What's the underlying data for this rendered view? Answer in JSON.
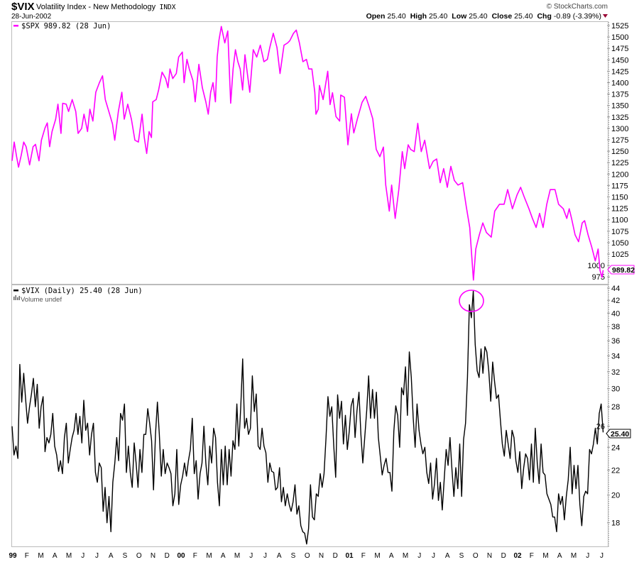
{
  "header": {
    "symbol": "$VIX",
    "name": "Volatility Index - New Methodology",
    "exchange": "INDX",
    "date": "28-Jun-2002",
    "copyright": "© StockCharts.com",
    "ohlc": {
      "open_label": "Open",
      "open": "25.40",
      "high_label": "High",
      "high": "25.40",
      "low_label": "Low",
      "low": "25.40",
      "close_label": "Close",
      "close": "25.40",
      "chg_label": "Chg",
      "chg": "-0.89 (-3.39%)"
    },
    "down_arrow_color": "#990033"
  },
  "top_pane": {
    "legend": "$SPX 989.82 (28 Jun)",
    "last_value_tag": "989.82",
    "color": "#ff00ff"
  },
  "bottom_pane": {
    "legend": "$VIX (Daily) 25.40 (28 Jun)",
    "volume_note": "Volume undef",
    "last_value_tag": "25.40",
    "color": "#000000",
    "annotation": "circle around Sep-2001 VIX peak"
  },
  "chart_data": [
    {
      "type": "line",
      "title": "$SPX",
      "x_unit": "months since Jan 1999",
      "y_scale": "linear",
      "ylim": [
        962,
        1535
      ],
      "y_ticks": [
        "975",
        "1000",
        "1025",
        "1050",
        "1075",
        "1100",
        "1125",
        "1150",
        "1175",
        "1200",
        "1225",
        "1250",
        "1275",
        "1300",
        "1325",
        "1350",
        "1375",
        "1400",
        "1425",
        "1450",
        "1475",
        "1500",
        "1525"
      ],
      "points": [
        [
          0,
          1229
        ],
        [
          0.15,
          1270
        ],
        [
          0.32,
          1239
        ],
        [
          0.46,
          1215
        ],
        [
          0.66,
          1242
        ],
        [
          0.83,
          1270
        ],
        [
          1.0,
          1260
        ],
        [
          1.25,
          1220
        ],
        [
          1.5,
          1260
        ],
        [
          1.67,
          1265
        ],
        [
          1.92,
          1229
        ],
        [
          2.09,
          1274
        ],
        [
          2.35,
          1301
        ],
        [
          2.51,
          1312
        ],
        [
          2.68,
          1260
        ],
        [
          2.85,
          1293
        ],
        [
          3.11,
          1320
        ],
        [
          3.27,
          1353
        ],
        [
          3.49,
          1289
        ],
        [
          3.61,
          1355
        ],
        [
          3.86,
          1353
        ],
        [
          4.03,
          1337
        ],
        [
          4.29,
          1363
        ],
        [
          4.54,
          1337
        ],
        [
          4.71,
          1289
        ],
        [
          4.96,
          1300
        ],
        [
          5.13,
          1331
        ],
        [
          5.38,
          1293
        ],
        [
          5.55,
          1342
        ],
        [
          5.76,
          1316
        ],
        [
          5.97,
          1379
        ],
        [
          6.23,
          1400
        ],
        [
          6.45,
          1415
        ],
        [
          6.65,
          1363
        ],
        [
          6.9,
          1337
        ],
        [
          7.16,
          1310
        ],
        [
          7.32,
          1274
        ],
        [
          7.58,
          1337
        ],
        [
          7.83,
          1379
        ],
        [
          8.0,
          1320
        ],
        [
          8.25,
          1353
        ],
        [
          8.51,
          1320
        ],
        [
          8.76,
          1274
        ],
        [
          9.01,
          1270
        ],
        [
          9.27,
          1331
        ],
        [
          9.43,
          1280
        ],
        [
          9.6,
          1245
        ],
        [
          9.77,
          1293
        ],
        [
          9.94,
          1280
        ],
        [
          10.03,
          1358
        ],
        [
          10.28,
          1363
        ],
        [
          10.45,
          1384
        ],
        [
          10.7,
          1423
        ],
        [
          10.95,
          1409
        ],
        [
          11.12,
          1389
        ],
        [
          11.26,
          1430
        ],
        [
          11.46,
          1409
        ],
        [
          11.71,
          1420
        ],
        [
          11.88,
          1456
        ],
        [
          12.14,
          1467
        ],
        [
          12.27,
          1400
        ],
        [
          12.47,
          1451
        ],
        [
          12.64,
          1430
        ],
        [
          12.9,
          1404
        ],
        [
          13.06,
          1358
        ],
        [
          13.32,
          1440
        ],
        [
          13.57,
          1389
        ],
        [
          13.82,
          1358
        ],
        [
          13.99,
          1331
        ],
        [
          14.16,
          1379
        ],
        [
          14.33,
          1400
        ],
        [
          14.5,
          1358
        ],
        [
          14.63,
          1456
        ],
        [
          14.75,
          1492
        ],
        [
          14.92,
          1523
        ],
        [
          15.17,
          1487
        ],
        [
          15.38,
          1513
        ],
        [
          15.59,
          1355
        ],
        [
          15.76,
          1430
        ],
        [
          15.93,
          1472
        ],
        [
          16.1,
          1446
        ],
        [
          16.27,
          1430
        ],
        [
          16.44,
          1384
        ],
        [
          16.61,
          1461
        ],
        [
          16.78,
          1420
        ],
        [
          16.95,
          1379
        ],
        [
          17.2,
          1472
        ],
        [
          17.45,
          1456
        ],
        [
          17.7,
          1482
        ],
        [
          17.96,
          1446
        ],
        [
          18.21,
          1451
        ],
        [
          18.38,
          1477
        ],
        [
          18.63,
          1508
        ],
        [
          18.89,
          1477
        ],
        [
          19.11,
          1420
        ],
        [
          19.39,
          1482
        ],
        [
          19.65,
          1487
        ],
        [
          19.81,
          1492
        ],
        [
          20.07,
          1508
        ],
        [
          20.27,
          1515
        ],
        [
          20.49,
          1487
        ],
        [
          20.74,
          1446
        ],
        [
          20.99,
          1451
        ],
        [
          21.16,
          1430
        ],
        [
          21.38,
          1430
        ],
        [
          21.59,
          1379
        ],
        [
          21.67,
          1331
        ],
        [
          21.84,
          1342
        ],
        [
          21.92,
          1394
        ],
        [
          22.18,
          1363
        ],
        [
          22.51,
          1425
        ],
        [
          22.68,
          1352
        ],
        [
          22.85,
          1378
        ],
        [
          23.1,
          1326
        ],
        [
          23.36,
          1316
        ],
        [
          23.44,
          1373
        ],
        [
          23.7,
          1368
        ],
        [
          23.95,
          1264
        ],
        [
          24.2,
          1332
        ],
        [
          24.37,
          1290
        ],
        [
          24.63,
          1321
        ],
        [
          24.96,
          1357
        ],
        [
          25.22,
          1370
        ],
        [
          25.47,
          1347
        ],
        [
          25.72,
          1321
        ],
        [
          25.97,
          1254
        ],
        [
          26.23,
          1238
        ],
        [
          26.48,
          1259
        ],
        [
          26.65,
          1176
        ],
        [
          26.9,
          1119
        ],
        [
          27.07,
          1176
        ],
        [
          27.32,
          1103
        ],
        [
          27.58,
          1166
        ],
        [
          27.83,
          1249
        ],
        [
          28.0,
          1212
        ],
        [
          28.25,
          1264
        ],
        [
          28.42,
          1254
        ],
        [
          28.68,
          1249
        ],
        [
          28.93,
          1311
        ],
        [
          29.18,
          1249
        ],
        [
          29.43,
          1274
        ],
        [
          29.77,
          1212
        ],
        [
          30.03,
          1228
        ],
        [
          30.28,
          1233
        ],
        [
          30.53,
          1181
        ],
        [
          30.78,
          1212
        ],
        [
          31.04,
          1171
        ],
        [
          31.29,
          1217
        ],
        [
          31.54,
          1186
        ],
        [
          31.8,
          1176
        ],
        [
          32.13,
          1181
        ],
        [
          32.39,
          1129
        ],
        [
          32.64,
          1083
        ],
        [
          32.9,
          968
        ],
        [
          33.07,
          1036
        ],
        [
          33.32,
          1067
        ],
        [
          33.57,
          1093
        ],
        [
          33.83,
          1072
        ],
        [
          34.17,
          1062
        ],
        [
          34.42,
          1119
        ],
        [
          34.76,
          1134
        ],
        [
          35.09,
          1134
        ],
        [
          35.34,
          1166
        ],
        [
          35.68,
          1124
        ],
        [
          36.02,
          1155
        ],
        [
          36.27,
          1171
        ],
        [
          36.52,
          1150
        ],
        [
          36.86,
          1124
        ],
        [
          37.11,
          1103
        ],
        [
          37.37,
          1083
        ],
        [
          37.62,
          1114
        ],
        [
          37.87,
          1083
        ],
        [
          38.13,
          1134
        ],
        [
          38.38,
          1166
        ],
        [
          38.72,
          1166
        ],
        [
          38.97,
          1134
        ],
        [
          39.31,
          1124
        ],
        [
          39.56,
          1103
        ],
        [
          39.73,
          1124
        ],
        [
          39.9,
          1103
        ],
        [
          40.15,
          1067
        ],
        [
          40.4,
          1052
        ],
        [
          40.66,
          1093
        ],
        [
          40.83,
          1098
        ],
        [
          41.08,
          1067
        ],
        [
          41.33,
          1041
        ],
        [
          41.59,
          1010
        ],
        [
          41.79,
          1036
        ],
        [
          41.93,
          989
        ],
        [
          42.07,
          974
        ],
        [
          42.15,
          989.82
        ]
      ]
    },
    {
      "type": "line",
      "title": "$VIX (Daily)",
      "x_unit": "months since Jan 1999",
      "x_range": [
        0,
        42.15
      ],
      "y_scale": "log",
      "ylim": [
        16.2,
        44.5
      ],
      "y_ticks": [
        "18",
        "20",
        "22",
        "24",
        "26",
        "28",
        "30",
        "32",
        "34",
        "36",
        "38",
        "40",
        "42",
        "44"
      ],
      "values": [
        26.0,
        23.3,
        24.1,
        23.0,
        32.9,
        28.5,
        31.8,
        28.8,
        26.3,
        28.0,
        29.4,
        31.2,
        28.0,
        30.5,
        25.8,
        28.0,
        29.1,
        23.6,
        24.9,
        24.4,
        25.2,
        27.3,
        24.1,
        23.3,
        21.9,
        22.8,
        21.7,
        24.9,
        26.3,
        22.6,
        23.8,
        24.9,
        25.6,
        27.3,
        25.2,
        27.0,
        24.4,
        28.7,
        25.6,
        26.3,
        23.3,
        25.2,
        26.3,
        21.8,
        21.0,
        22.6,
        22.2,
        18.8,
        20.6,
        18.0,
        19.9,
        17.4,
        21.0,
        22.6,
        24.9,
        22.8,
        27.3,
        26.6,
        28.3,
        21.8,
        24.1,
        21.8,
        20.6,
        24.4,
        22.6,
        20.6,
        23.8,
        21.8,
        25.2,
        25.2,
        27.8,
        26.3,
        24.6,
        20.4,
        25.2,
        28.5,
        25.2,
        21.5,
        23.8,
        21.7,
        22.6,
        22.2,
        21.7,
        19.2,
        20.1,
        23.8,
        19.3,
        20.8,
        21.5,
        22.6,
        21.5,
        22.8,
        23.8,
        26.8,
        21.7,
        22.8,
        19.7,
        21.7,
        22.6,
        26.0,
        22.6,
        20.8,
        24.1,
        22.6,
        25.8,
        24.9,
        21.0,
        19.2,
        23.8,
        20.8,
        24.1,
        20.8,
        23.8,
        21.5,
        24.6,
        23.8,
        28.3,
        24.1,
        28.0,
        33.6,
        25.8,
        26.8,
        25.2,
        25.8,
        31.5,
        27.5,
        29.4,
        24.1,
        23.8,
        25.8,
        24.1,
        23.5,
        21.0,
        22.6,
        21.9,
        21.8,
        20.4,
        20.6,
        22.2,
        19.5,
        20.6,
        19.2,
        20.1,
        19.3,
        18.8,
        19.5,
        20.8,
        18.6,
        19.2,
        17.8,
        17.4,
        17.3,
        16.6,
        17.6,
        20.8,
        18.4,
        18.2,
        20.1,
        19.9,
        21.7,
        20.6,
        21.7,
        24.9,
        29.1,
        27.0,
        28.0,
        24.1,
        21.4,
        29.3,
        26.8,
        28.6,
        24.3,
        27.1,
        23.8,
        25.5,
        28.1,
        28.9,
        24.9,
        27.6,
        29.6,
        25.2,
        22.6,
        24.9,
        27.6,
        31.5,
        26.8,
        29.9,
        26.8,
        29.6,
        24.9,
        23.2,
        21.6,
        22.4,
        23.0,
        21.8,
        21.8,
        20.3,
        25.5,
        28.1,
        27.1,
        24.0,
        30.1,
        29.3,
        32.6,
        27.1,
        34.5,
        31.3,
        26.8,
        24.0,
        28.3,
        25.6,
        24.3,
        23.4,
        24.0,
        21.8,
        20.9,
        22.6,
        19.7,
        20.9,
        23.0,
        19.6,
        21.0,
        18.9,
        21.3,
        23.8,
        22.4,
        24.9,
        22.0,
        19.9,
        22.2,
        20.5,
        24.3,
        19.9,
        24.7,
        26.3,
        31.3,
        41.3,
        39.3,
        43.5,
        35.5,
        32.1,
        31.3,
        34.9,
        31.8,
        35.2,
        34.5,
        32.1,
        28.6,
        33.2,
        30.8,
        28.9,
        29.3,
        26.6,
        24.3,
        23.2,
        25.6,
        24.3,
        23.0,
        25.6,
        24.9,
        22.8,
        21.8,
        23.6,
        20.5,
        22.2,
        23.4,
        23.0,
        21.2,
        24.3,
        21.0,
        25.8,
        22.6,
        20.9,
        24.3,
        21.8,
        21.6,
        20.1,
        19.7,
        19.3,
        18.4,
        18.4,
        17.4,
        20.1,
        19.3,
        19.9,
        18.2,
        19.9,
        21.2,
        24.0,
        20.1,
        22.4,
        20.5,
        22.4,
        19.3,
        17.8,
        19.9,
        20.3,
        20.1,
        23.8,
        23.4,
        24.3,
        25.8,
        24.3,
        27.3,
        28.3,
        25.4
      ]
    }
  ],
  "x_axis": {
    "labels": [
      "99",
      "F",
      "M",
      "A",
      "M",
      "J",
      "J",
      "A",
      "S",
      "O",
      "N",
      "D",
      "00",
      "F",
      "M",
      "A",
      "M",
      "J",
      "J",
      "A",
      "S",
      "O",
      "N",
      "D",
      "01",
      "F",
      "M",
      "A",
      "M",
      "J",
      "J",
      "A",
      "S",
      "O",
      "N",
      "D",
      "02",
      "F",
      "M",
      "A",
      "M",
      "J",
      "J"
    ]
  }
}
